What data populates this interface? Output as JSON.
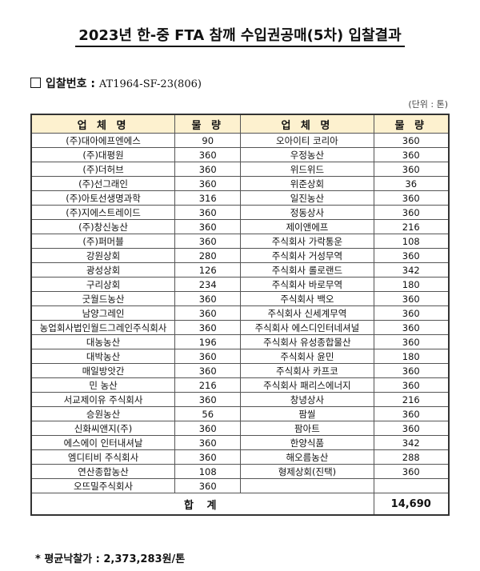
{
  "title": "2023년 한-중 FTA 참깨 수입권공매(5차) 입찰결과",
  "bid_number": {
    "label": "입찰번호 : ",
    "value": "AT1964-SF-23(806)"
  },
  "unit": "(단위 : 톤)",
  "table": {
    "headers": [
      "업 체 명",
      "물 량",
      "업 체 명",
      "물 량"
    ],
    "rows": [
      [
        "(주)대아에프엔에스",
        "90",
        "오아이티 코리아",
        "360"
      ],
      [
        "(주)대평원",
        "360",
        "우정농산",
        "360"
      ],
      [
        "(주)더허브",
        "360",
        "위드위드",
        "360"
      ],
      [
        "(주)선그래인",
        "360",
        "위준상회",
        "36"
      ],
      [
        "(주)아토선생명과학",
        "316",
        "일진농산",
        "360"
      ],
      [
        "(주)지에스트레이드",
        "360",
        "정동상사",
        "360"
      ],
      [
        "(주)창신농산",
        "360",
        "제이앤에프",
        "216"
      ],
      [
        "(주)퍼머블",
        "360",
        "주식회사 가락통운",
        "108"
      ],
      [
        "강원상회",
        "280",
        "주식회사 거성무역",
        "360"
      ],
      [
        "광성상회",
        "126",
        "주식회사 롤로랜드",
        "342"
      ],
      [
        "구리상회",
        "234",
        "주식회사 바로무역",
        "180"
      ],
      [
        "굿월드농산",
        "360",
        "주식회사 백오",
        "360"
      ],
      [
        "남양그레인",
        "360",
        "주식회사 신세계무역",
        "360"
      ],
      [
        "농업회사법인월드그레인주식회사",
        "360",
        "주식회사 에스디인터네셔널",
        "360"
      ],
      [
        "대농농산",
        "196",
        "주식회사 유성종합물산",
        "360"
      ],
      [
        "대박농산",
        "360",
        "주식회사 윤민",
        "180"
      ],
      [
        "매일방앗간",
        "360",
        "주식회사 카프코",
        "360"
      ],
      [
        "민 농산",
        "216",
        "주식회사 패리스에너지",
        "360"
      ],
      [
        "서교제이유 주식회사",
        "360",
        "창녕상사",
        "216"
      ],
      [
        "승원농산",
        "56",
        "팜씰",
        "360"
      ],
      [
        "신화씨앤지(주)",
        "360",
        "팜아트",
        "360"
      ],
      [
        "에스에이 인터내셔날",
        "360",
        "한양식품",
        "342"
      ],
      [
        "엠디티비 주식회사",
        "360",
        "해오름농산",
        "288"
      ],
      [
        "연산종합농산",
        "108",
        "형제상회(진택)",
        "360"
      ],
      [
        "오뜨밀주식회사",
        "360",
        "",
        ""
      ]
    ],
    "total_label": "합 계",
    "total_value": "14,690"
  },
  "average_price": "* 평균낙찰가 : 2,373,283원/톤",
  "colors": {
    "header_bg": "#fdf1cf"
  }
}
